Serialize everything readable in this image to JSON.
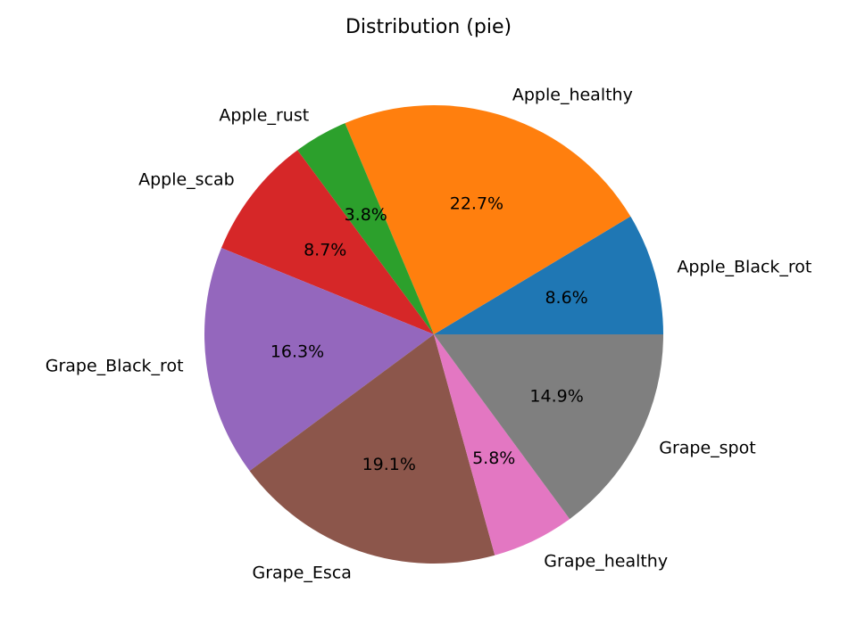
{
  "chart_data": {
    "type": "pie",
    "title": "Distribution (pie)",
    "start_angle_deg": 0,
    "direction": "counterclockwise",
    "categories": [
      "Apple_Black_rot",
      "Apple_healthy",
      "Apple_rust",
      "Apple_scab",
      "Grape_Black_rot",
      "Grape_Esca",
      "Grape_healthy",
      "Grape_spot"
    ],
    "values": [
      8.6,
      22.7,
      3.8,
      8.7,
      16.3,
      19.1,
      5.8,
      14.9
    ],
    "value_labels": [
      "8.6%",
      "22.7%",
      "3.8%",
      "8.7%",
      "16.3%",
      "19.1%",
      "5.8%",
      "14.9%"
    ],
    "colors": [
      "#1f77b4",
      "#ff7f0e",
      "#2ca02c",
      "#d62728",
      "#9467bd",
      "#8c564b",
      "#e377c2",
      "#7f7f7f"
    ]
  }
}
